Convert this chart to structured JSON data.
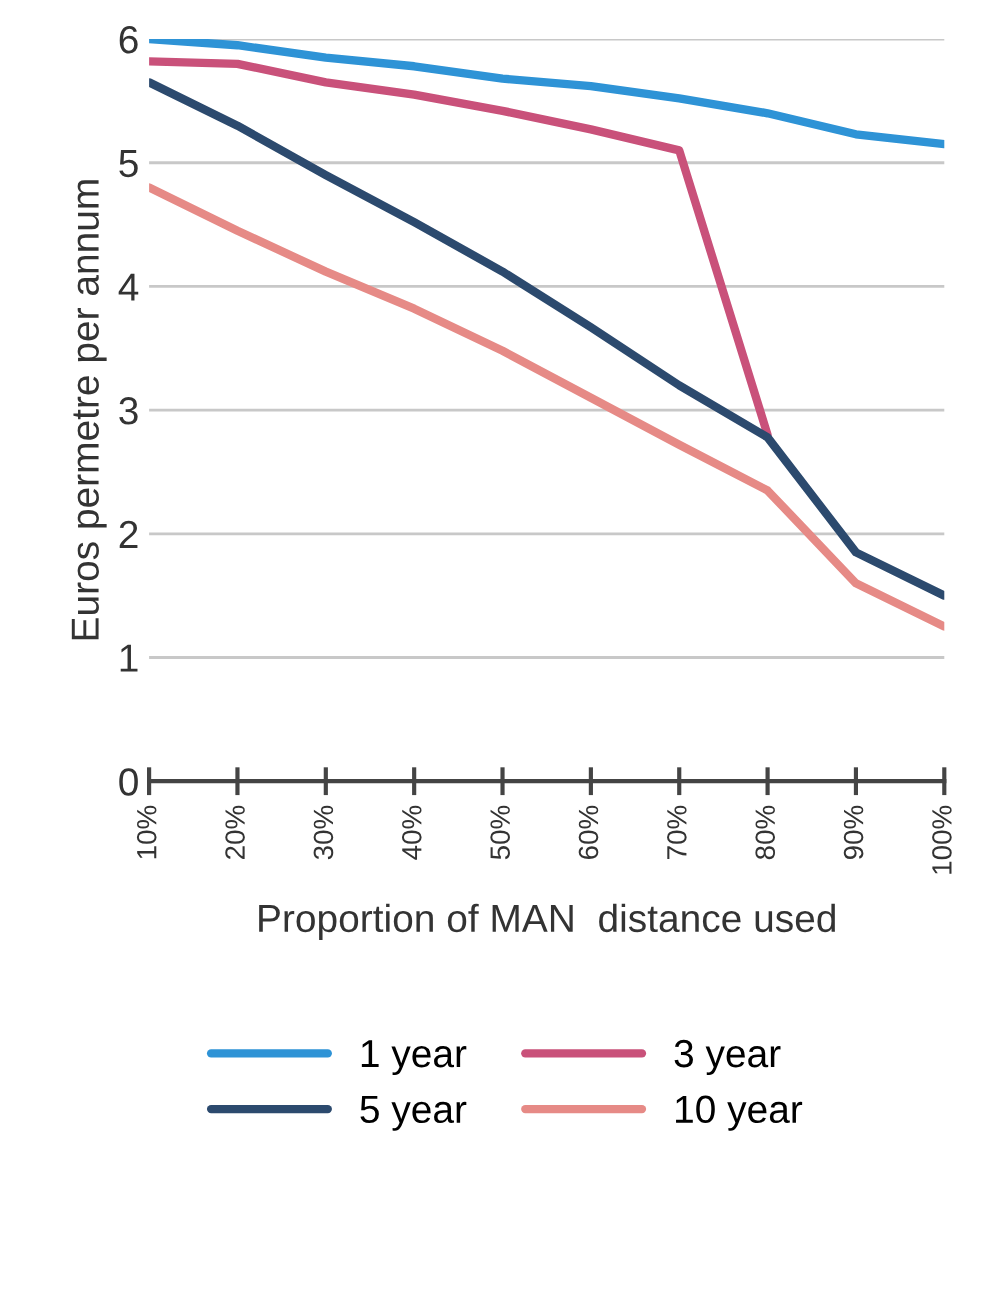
{
  "chart_data": {
    "type": "line",
    "xlabel": "Proportion of MAN  distance used",
    "ylabel": "Euros permetre per annum",
    "categories": [
      "10%",
      "20%",
      "30%",
      "40%",
      "50%",
      "60%",
      "70%",
      "80%",
      "90%",
      "100%"
    ],
    "series": [
      {
        "name": "1 year",
        "color": "#2e93d6",
        "values": [
          6.0,
          5.95,
          5.85,
          5.78,
          5.68,
          5.62,
          5.52,
          5.4,
          5.23,
          5.15
        ]
      },
      {
        "name": "3 year",
        "color": "#c9517a",
        "values": [
          5.82,
          5.8,
          5.65,
          5.55,
          5.42,
          5.27,
          5.1,
          2.8,
          null,
          null
        ]
      },
      {
        "name": "5 year",
        "color": "#2c4a6e",
        "values": [
          5.65,
          5.3,
          4.9,
          4.52,
          4.12,
          3.67,
          3.2,
          2.78,
          1.85,
          1.5
        ]
      },
      {
        "name": "10 year",
        "color": "#e68a86",
        "values": [
          4.8,
          4.45,
          4.12,
          3.82,
          3.48,
          3.1,
          2.72,
          2.35,
          1.6,
          1.25
        ]
      }
    ],
    "ylim": [
      0,
      6
    ],
    "yticks": [
      0,
      1,
      2,
      3,
      4,
      5,
      6
    ],
    "grid": "y",
    "legend": "bottom",
    "marker": "none",
    "line_style": "solid"
  }
}
